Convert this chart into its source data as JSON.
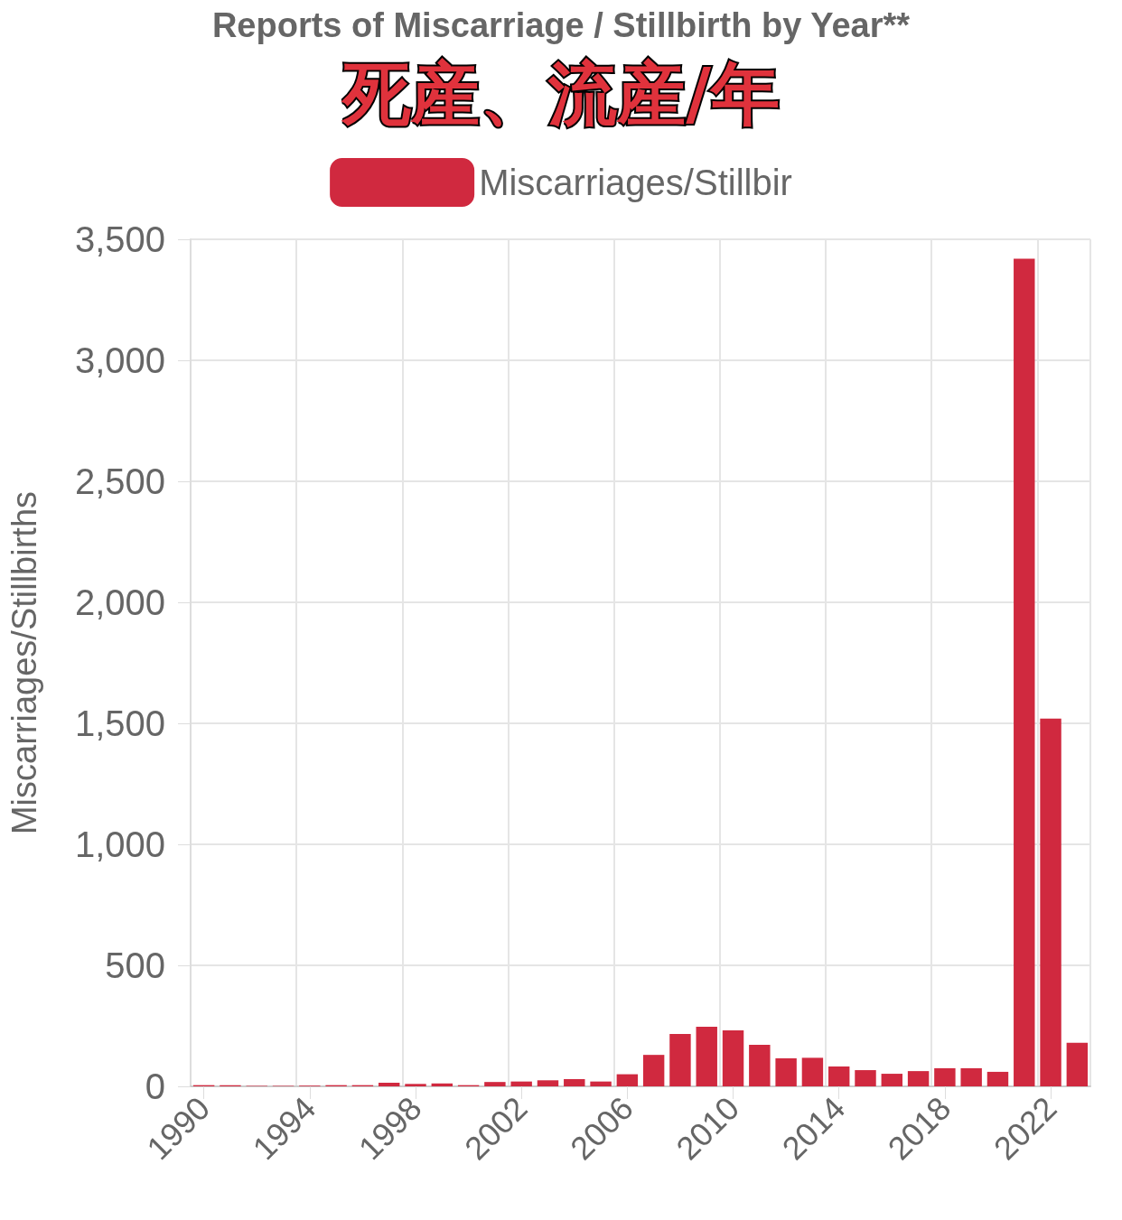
{
  "chart_data": {
    "type": "bar",
    "title": "Reports of Miscarriage / Stillbirth by Year**",
    "subtitle": "死産、流産/年",
    "ylabel": "Miscarriages/Stillbirths",
    "categories": [
      "1990",
      null,
      null,
      null,
      "1994",
      null,
      null,
      null,
      "1998",
      null,
      null,
      null,
      "2002",
      null,
      null,
      null,
      "2006",
      null,
      null,
      null,
      "2010",
      null,
      null,
      null,
      "2014",
      null,
      null,
      null,
      "2018",
      null,
      null,
      null,
      "2022",
      null
    ],
    "series": [
      {
        "name": "Miscarriages/Stillbir",
        "color": "#d0293f",
        "values": [
          5,
          5,
          2,
          2,
          3,
          5,
          5,
          15,
          10,
          12,
          5,
          18,
          20,
          25,
          30,
          20,
          50,
          130,
          216,
          246,
          231,
          172,
          116,
          118,
          82,
          67,
          52,
          63,
          75,
          75,
          60,
          3420,
          1520,
          180
        ]
      }
    ],
    "ylim": [
      0,
      3500
    ],
    "yticks": [
      {
        "value": 0,
        "label": "0"
      },
      {
        "value": 500,
        "label": "500"
      },
      {
        "value": 1000,
        "label": "1,000"
      },
      {
        "value": 1500,
        "label": "1,500"
      },
      {
        "value": 2000,
        "label": "2,000"
      },
      {
        "value": 2500,
        "label": "2,500"
      },
      {
        "value": 3000,
        "label": "3,000"
      },
      {
        "value": 3500,
        "label": "3,500"
      }
    ],
    "grid": true,
    "legend": "top"
  }
}
